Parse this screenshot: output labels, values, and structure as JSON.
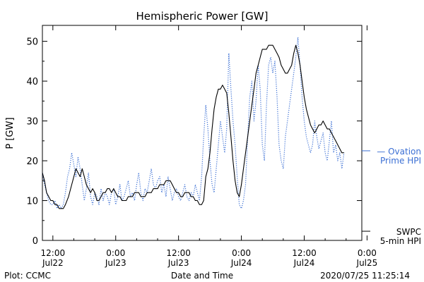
{
  "chart_data": {
    "type": "line",
    "title": "Hemispheric Power [GW]",
    "ylabel": "P [GW]",
    "xlabel": "Date and Time",
    "ylim": [
      0,
      54
    ],
    "xlim": [
      -1,
      29.5
    ],
    "yticks": [
      0,
      10,
      20,
      30,
      40,
      50
    ],
    "x_units": "hours since 2020-07-22 12:00",
    "xticks": [
      {
        "x": 0,
        "line1": "12:00",
        "line2": "Jul22"
      },
      {
        "x": 6,
        "line1": "0:00",
        "line2": "Jul23"
      },
      {
        "x": 12,
        "line1": "12:00",
        "line2": "Jul23"
      },
      {
        "x": 18,
        "line1": "0:00",
        "line2": "Jul24"
      },
      {
        "x": 24,
        "line1": "12:00",
        "line2": "Jul24"
      },
      {
        "x": 30,
        "line1": "0:00",
        "line2": "Jul25"
      }
    ],
    "grid": false,
    "series": [
      {
        "name": "SWPC 5-min HPI",
        "color": "#000000",
        "style": "solid",
        "points": [
          [
            -1.0,
            17
          ],
          [
            -0.8,
            15
          ],
          [
            -0.6,
            12
          ],
          [
            -0.4,
            11
          ],
          [
            -0.2,
            10
          ],
          [
            0.0,
            10
          ],
          [
            0.2,
            9
          ],
          [
            0.4,
            9
          ],
          [
            0.6,
            8
          ],
          [
            0.8,
            8
          ],
          [
            1.0,
            8
          ],
          [
            1.2,
            9
          ],
          [
            1.5,
            11
          ],
          [
            1.8,
            14
          ],
          [
            2.0,
            16
          ],
          [
            2.2,
            18
          ],
          [
            2.4,
            17
          ],
          [
            2.6,
            16
          ],
          [
            2.8,
            18
          ],
          [
            3.0,
            16
          ],
          [
            3.2,
            14
          ],
          [
            3.4,
            13
          ],
          [
            3.6,
            12
          ],
          [
            3.8,
            13
          ],
          [
            4.0,
            12
          ],
          [
            4.2,
            10
          ],
          [
            4.4,
            10
          ],
          [
            4.6,
            11
          ],
          [
            4.8,
            12
          ],
          [
            5.0,
            12
          ],
          [
            5.2,
            13
          ],
          [
            5.4,
            13
          ],
          [
            5.6,
            12
          ],
          [
            5.8,
            13
          ],
          [
            6.0,
            12
          ],
          [
            6.2,
            11
          ],
          [
            6.4,
            11
          ],
          [
            6.6,
            10
          ],
          [
            6.8,
            10
          ],
          [
            7.0,
            10
          ],
          [
            7.2,
            11
          ],
          [
            7.4,
            11
          ],
          [
            7.6,
            11
          ],
          [
            7.8,
            12
          ],
          [
            8.0,
            12
          ],
          [
            8.2,
            12
          ],
          [
            8.4,
            11
          ],
          [
            8.6,
            11
          ],
          [
            8.8,
            11
          ],
          [
            9.0,
            12
          ],
          [
            9.2,
            12
          ],
          [
            9.4,
            12
          ],
          [
            9.6,
            13
          ],
          [
            9.8,
            13
          ],
          [
            10.0,
            13
          ],
          [
            10.2,
            14
          ],
          [
            10.4,
            14
          ],
          [
            10.6,
            14
          ],
          [
            10.8,
            15
          ],
          [
            11.0,
            15
          ],
          [
            11.2,
            15
          ],
          [
            11.4,
            14
          ],
          [
            11.6,
            13
          ],
          [
            11.8,
            12
          ],
          [
            12.0,
            12
          ],
          [
            12.2,
            11
          ],
          [
            12.4,
            11
          ],
          [
            12.6,
            12
          ],
          [
            12.8,
            12
          ],
          [
            13.0,
            12
          ],
          [
            13.2,
            11
          ],
          [
            13.4,
            11
          ],
          [
            13.6,
            10
          ],
          [
            13.8,
            10
          ],
          [
            14.0,
            9
          ],
          [
            14.2,
            9
          ],
          [
            14.4,
            10
          ],
          [
            14.6,
            16
          ],
          [
            14.8,
            18
          ],
          [
            15.0,
            22
          ],
          [
            15.2,
            28
          ],
          [
            15.4,
            33
          ],
          [
            15.6,
            36
          ],
          [
            15.8,
            38
          ],
          [
            16.0,
            38
          ],
          [
            16.2,
            39
          ],
          [
            16.4,
            38
          ],
          [
            16.6,
            37
          ],
          [
            16.8,
            32
          ],
          [
            17.0,
            26
          ],
          [
            17.2,
            20
          ],
          [
            17.4,
            15
          ],
          [
            17.6,
            12
          ],
          [
            17.8,
            11
          ],
          [
            18.0,
            14
          ],
          [
            18.2,
            18
          ],
          [
            18.4,
            22
          ],
          [
            18.6,
            26
          ],
          [
            18.8,
            30
          ],
          [
            19.0,
            34
          ],
          [
            19.2,
            38
          ],
          [
            19.4,
            42
          ],
          [
            19.6,
            44
          ],
          [
            19.8,
            46
          ],
          [
            20.0,
            48
          ],
          [
            20.2,
            48
          ],
          [
            20.4,
            48
          ],
          [
            20.6,
            49
          ],
          [
            20.8,
            49
          ],
          [
            21.0,
            49
          ],
          [
            21.2,
            48
          ],
          [
            21.4,
            47
          ],
          [
            21.6,
            46
          ],
          [
            21.8,
            44
          ],
          [
            22.0,
            43
          ],
          [
            22.2,
            42
          ],
          [
            22.4,
            42
          ],
          [
            22.6,
            43
          ],
          [
            22.8,
            44
          ],
          [
            23.0,
            47
          ],
          [
            23.2,
            49
          ],
          [
            23.4,
            47
          ],
          [
            23.6,
            44
          ],
          [
            23.8,
            40
          ],
          [
            24.0,
            36
          ],
          [
            24.2,
            33
          ],
          [
            24.4,
            31
          ],
          [
            24.6,
            29
          ],
          [
            24.8,
            28
          ],
          [
            25.0,
            27
          ],
          [
            25.2,
            28
          ],
          [
            25.4,
            29
          ],
          [
            25.6,
            29
          ],
          [
            25.8,
            30
          ],
          [
            26.0,
            29
          ],
          [
            26.2,
            28
          ],
          [
            26.4,
            28
          ],
          [
            26.6,
            27
          ],
          [
            26.8,
            26
          ],
          [
            27.0,
            25
          ],
          [
            27.2,
            24
          ],
          [
            27.4,
            23
          ],
          [
            27.6,
            22
          ],
          [
            27.8,
            22
          ]
        ]
      },
      {
        "name": "Ovation Prime HPI",
        "color": "#3b6fd4",
        "style": "dotted",
        "points": [
          [
            -1.0,
            17
          ],
          [
            -0.8,
            14
          ],
          [
            -0.6,
            12
          ],
          [
            -0.4,
            10
          ],
          [
            -0.2,
            9
          ],
          [
            0.0,
            9
          ],
          [
            0.2,
            10
          ],
          [
            0.4,
            8
          ],
          [
            0.6,
            9
          ],
          [
            0.8,
            8
          ],
          [
            1.0,
            9
          ],
          [
            1.2,
            12
          ],
          [
            1.4,
            16
          ],
          [
            1.6,
            18
          ],
          [
            1.8,
            22
          ],
          [
            2.0,
            19
          ],
          [
            2.2,
            16
          ],
          [
            2.4,
            21
          ],
          [
            2.6,
            18
          ],
          [
            2.8,
            14
          ],
          [
            3.0,
            10
          ],
          [
            3.2,
            13
          ],
          [
            3.4,
            17
          ],
          [
            3.6,
            11
          ],
          [
            3.8,
            9
          ],
          [
            4.0,
            12
          ],
          [
            4.2,
            11
          ],
          [
            4.4,
            9
          ],
          [
            4.6,
            13
          ],
          [
            4.8,
            10
          ],
          [
            5.0,
            12
          ],
          [
            5.2,
            11
          ],
          [
            5.4,
            9
          ],
          [
            5.6,
            12
          ],
          [
            5.8,
            13
          ],
          [
            6.0,
            9
          ],
          [
            6.2,
            11
          ],
          [
            6.4,
            14
          ],
          [
            6.6,
            10
          ],
          [
            6.8,
            11
          ],
          [
            7.0,
            13
          ],
          [
            7.2,
            15
          ],
          [
            7.4,
            11
          ],
          [
            7.6,
            12
          ],
          [
            7.8,
            10
          ],
          [
            8.0,
            14
          ],
          [
            8.2,
            17
          ],
          [
            8.4,
            12
          ],
          [
            8.6,
            10
          ],
          [
            8.8,
            13
          ],
          [
            9.0,
            12
          ],
          [
            9.2,
            15
          ],
          [
            9.4,
            18
          ],
          [
            9.6,
            14
          ],
          [
            9.8,
            13
          ],
          [
            10.0,
            15
          ],
          [
            10.2,
            16
          ],
          [
            10.4,
            12
          ],
          [
            10.6,
            14
          ],
          [
            10.8,
            11
          ],
          [
            11.0,
            16
          ],
          [
            11.2,
            13
          ],
          [
            11.4,
            10
          ],
          [
            11.6,
            12
          ],
          [
            11.8,
            13
          ],
          [
            12.0,
            11
          ],
          [
            12.2,
            10
          ],
          [
            12.4,
            12
          ],
          [
            12.6,
            14
          ],
          [
            12.8,
            11
          ],
          [
            13.0,
            10
          ],
          [
            13.2,
            12
          ],
          [
            13.4,
            11
          ],
          [
            13.6,
            14
          ],
          [
            13.8,
            12
          ],
          [
            14.0,
            10
          ],
          [
            14.2,
            16
          ],
          [
            14.4,
            26
          ],
          [
            14.6,
            34
          ],
          [
            14.8,
            28
          ],
          [
            15.0,
            20
          ],
          [
            15.2,
            14
          ],
          [
            15.4,
            12
          ],
          [
            15.6,
            18
          ],
          [
            15.8,
            24
          ],
          [
            16.0,
            30
          ],
          [
            16.2,
            26
          ],
          [
            16.4,
            22
          ],
          [
            16.6,
            28
          ],
          [
            16.8,
            47
          ],
          [
            17.0,
            38
          ],
          [
            17.2,
            30
          ],
          [
            17.4,
            24
          ],
          [
            17.6,
            16
          ],
          [
            17.8,
            9
          ],
          [
            18.0,
            8
          ],
          [
            18.2,
            10
          ],
          [
            18.4,
            14
          ],
          [
            18.6,
            26
          ],
          [
            18.8,
            36
          ],
          [
            19.0,
            40
          ],
          [
            19.2,
            30
          ],
          [
            19.4,
            35
          ],
          [
            19.6,
            44
          ],
          [
            19.8,
            38
          ],
          [
            20.0,
            24
          ],
          [
            20.2,
            20
          ],
          [
            20.4,
            34
          ],
          [
            20.6,
            44
          ],
          [
            20.8,
            46
          ],
          [
            21.0,
            42
          ],
          [
            21.2,
            45
          ],
          [
            21.4,
            36
          ],
          [
            21.6,
            24
          ],
          [
            21.8,
            20
          ],
          [
            22.0,
            18
          ],
          [
            22.2,
            26
          ],
          [
            22.4,
            30
          ],
          [
            22.6,
            34
          ],
          [
            22.8,
            38
          ],
          [
            23.0,
            42
          ],
          [
            23.2,
            46
          ],
          [
            23.4,
            51
          ],
          [
            23.6,
            44
          ],
          [
            23.8,
            36
          ],
          [
            24.0,
            30
          ],
          [
            24.2,
            26
          ],
          [
            24.4,
            24
          ],
          [
            24.6,
            22
          ],
          [
            24.8,
            24
          ],
          [
            25.0,
            30
          ],
          [
            25.2,
            26
          ],
          [
            25.4,
            23
          ],
          [
            25.6,
            25
          ],
          [
            25.8,
            27
          ],
          [
            26.0,
            22
          ],
          [
            26.2,
            20
          ],
          [
            26.4,
            25
          ],
          [
            26.6,
            30
          ],
          [
            26.8,
            22
          ],
          [
            27.0,
            24
          ],
          [
            27.2,
            20
          ],
          [
            27.4,
            22
          ],
          [
            27.6,
            18
          ],
          [
            27.8,
            22
          ]
        ]
      }
    ],
    "legend": [
      {
        "lines": [
          "— Ovation",
          "Prime HPI"
        ],
        "color": "#3b6fd4",
        "y": 22.5
      },
      {
        "lines": [
          "SWPC",
          "5-min HPI"
        ],
        "color": "#000000",
        "y": 2.3
      }
    ]
  },
  "footer": {
    "left": "Plot: CCMC",
    "center": "Date and Time",
    "right": "2020/07/25 11:25:14"
  }
}
